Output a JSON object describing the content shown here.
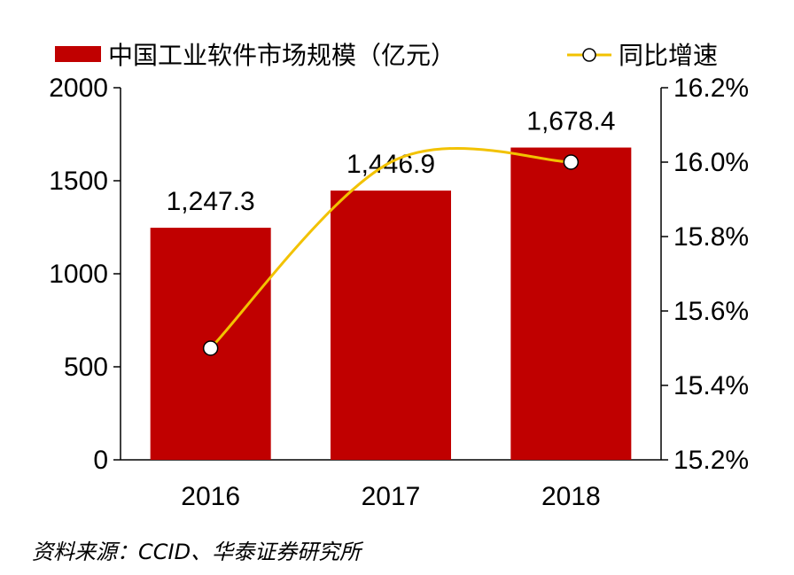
{
  "chart_data": {
    "type": "bar",
    "categories": [
      "2016",
      "2017",
      "2018"
    ],
    "series": [
      {
        "name": "中国工业软件市场规模（亿元）",
        "type": "bar",
        "axis": "left",
        "values": [
          1247.3,
          1446.9,
          1678.4
        ],
        "labels": [
          "1,247.3",
          "1,446.9",
          "1,678.4"
        ],
        "color": "#c00000"
      },
      {
        "name": "同比增速",
        "type": "line",
        "axis": "right",
        "values": [
          15.5,
          16.0,
          16.0
        ],
        "color": "#f2c200",
        "marker": "hollow-circle"
      }
    ],
    "y_left": {
      "ylim": [
        0,
        2000
      ],
      "ticks": [
        0,
        500,
        1000,
        1500,
        2000
      ],
      "tick_labels": [
        "0",
        "500",
        "1000",
        "1500",
        "2000"
      ]
    },
    "y_right": {
      "ylim": [
        15.2,
        16.2
      ],
      "ticks": [
        15.2,
        15.4,
        15.6,
        15.8,
        16.0,
        16.2
      ],
      "tick_labels": [
        "15.2%",
        "15.4%",
        "15.6%",
        "15.8%",
        "16.0%",
        "16.2%"
      ]
    },
    "legend": {
      "position": "top",
      "items": [
        "中国工业软件市场规模（亿元）",
        "同比增速"
      ]
    },
    "grid": false,
    "source": "资料来源：CCID、华泰证券研究所"
  }
}
